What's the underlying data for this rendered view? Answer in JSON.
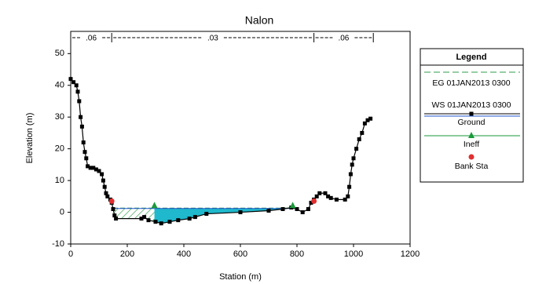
{
  "chart_data": {
    "type": "line",
    "title": "Nalon",
    "xlabel": "Station (m)",
    "ylabel": "Elevation (m)",
    "xlim": [
      0,
      1200
    ],
    "xticks": [
      0,
      200,
      400,
      600,
      800,
      1000,
      1200
    ],
    "ylim": [
      -10,
      57
    ],
    "yticks": [
      -10,
      0,
      10,
      20,
      30,
      40,
      50
    ],
    "legend_title": "Legend",
    "legend": "right",
    "roughness": {
      "labels": [
        ".06",
        ".03",
        ".06"
      ],
      "stations": [
        0,
        145,
        860,
        1070
      ]
    },
    "series": [
      {
        "name": "EG 01JAN2013 0300",
        "color": "#2e9e4a",
        "style": "dashed",
        "x": [
          150,
          790
        ],
        "values": [
          1.3,
          1.3
        ]
      },
      {
        "name": "WS 01JAN2013 0300",
        "color": "#2255cc",
        "style": "solid",
        "x": [
          150,
          790
        ],
        "values": [
          1.2,
          1.2
        ]
      },
      {
        "name": "Ground",
        "color": "#000000",
        "style": "markers",
        "x": [
          0,
          10,
          20,
          25,
          30,
          35,
          40,
          45,
          50,
          55,
          60,
          70,
          80,
          90,
          100,
          110,
          115,
          120,
          125,
          130,
          140,
          145,
          150,
          155,
          160,
          250,
          260,
          275,
          300,
          320,
          350,
          380,
          420,
          440,
          480,
          600,
          700,
          750,
          780,
          800,
          820,
          840,
          850,
          860,
          870,
          880,
          900,
          910,
          920,
          940,
          970,
          980,
          985,
          990,
          995,
          1000,
          1010,
          1020,
          1030,
          1040,
          1050,
          1060
        ],
        "values": [
          42,
          41,
          40,
          38,
          35,
          30,
          27,
          22,
          19,
          17,
          14.5,
          14,
          14,
          13.5,
          13,
          12,
          10,
          8,
          6,
          5,
          4,
          3,
          1,
          -1,
          -2,
          -2,
          -1.5,
          -2.5,
          -3,
          -3.5,
          -3,
          -2.5,
          -2,
          -1.5,
          -0.5,
          0,
          0.5,
          1,
          1.5,
          1,
          0,
          1,
          3,
          4,
          5,
          6,
          6,
          5,
          4.5,
          4,
          4,
          5,
          8,
          12,
          15,
          17,
          20,
          23,
          25,
          28,
          29,
          29.5
        ]
      },
      {
        "name": "Ineff",
        "color": "#1a9a3a",
        "style": "triangles",
        "x": [
          296,
          785
        ],
        "values": [
          1.3,
          1.3
        ]
      },
      {
        "name": "Bank Sta",
        "color": "#e03030",
        "style": "dots",
        "x": [
          145,
          860
        ],
        "values": [
          3.5,
          3.5
        ]
      }
    ]
  }
}
